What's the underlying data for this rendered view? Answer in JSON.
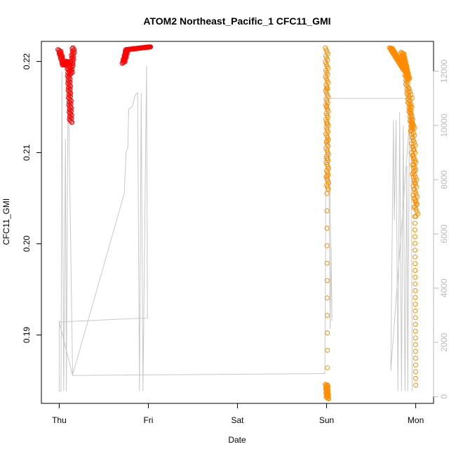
{
  "chart_data": {
    "type": "scatter",
    "title": "ATOM2 Northeast_Pacific_1 CFC11_GMI",
    "xlabel": "Date",
    "ylabel": "CFC11_GMI",
    "x_ticks": [
      "Thu",
      "Fri",
      "Sat",
      "Sun",
      "Mon"
    ],
    "x_range_days": [
      -0.2,
      4.2
    ],
    "ylim": [
      0.1825,
      0.2222
    ],
    "y_ticks": [
      0.19,
      0.2,
      0.21,
      0.22
    ],
    "y_tick_labels": [
      "0.19",
      "0.20",
      "0.21",
      "0.22"
    ],
    "y2_lim": [
      -250,
      13100
    ],
    "y2_ticks": [
      0,
      2000,
      4000,
      6000,
      8000,
      10000,
      12000
    ],
    "y2_tick_labels": [
      "0",
      "2000",
      "4000",
      "6000",
      "8000",
      "10000",
      "12000"
    ],
    "colors": {
      "red": "#ff0000",
      "orange": "#ff8c00",
      "gray": "#c8c8c8",
      "axis": "#000000",
      "right_axis": "#bbbbbb"
    },
    "series": [
      {
        "color": "red",
        "segments": [
          {
            "x0": 0.0,
            "x1": 0.05,
            "y0": 0.2213,
            "y1": 0.2196,
            "n": 25,
            "dense": true
          },
          {
            "x0": 0.05,
            "x1": 0.1,
            "y0": 0.2196,
            "y1": 0.22,
            "n": 15,
            "dense": true
          },
          {
            "x0": 0.1,
            "x1": 0.13,
            "y0": 0.22,
            "y1": 0.2133,
            "n": 60,
            "dense": true
          },
          {
            "x0": 0.13,
            "x1": 0.16,
            "y0": 0.2185,
            "y1": 0.2215,
            "n": 30,
            "dense": true
          },
          {
            "x0": 0.72,
            "x1": 0.76,
            "y0": 0.2198,
            "y1": 0.2213,
            "n": 25,
            "dense": true
          },
          {
            "x0": 0.76,
            "x1": 1.02,
            "y0": 0.2213,
            "y1": 0.2216,
            "n": 80,
            "dense": true
          }
        ]
      },
      {
        "color": "orange",
        "segments": [
          {
            "x0": 3.0,
            "x1": 3.01,
            "y0": 0.2215,
            "y1": 0.206,
            "n": 70,
            "dense": true
          },
          {
            "x0": 3.0,
            "x1": 3.01,
            "y0": 0.217,
            "y1": 0.1845,
            "n": 18,
            "dense": false
          },
          {
            "x0": 3.0,
            "x1": 3.01,
            "y0": 0.1846,
            "y1": 0.183,
            "n": 25,
            "dense": true
          },
          {
            "x0": 3.72,
            "x1": 3.88,
            "y0": 0.2215,
            "y1": 0.219,
            "n": 90,
            "dense": true
          },
          {
            "x0": 3.85,
            "x1": 3.92,
            "y0": 0.221,
            "y1": 0.218,
            "n": 50,
            "dense": true
          },
          {
            "x0": 3.88,
            "x1": 3.96,
            "y0": 0.2195,
            "y1": 0.2125,
            "n": 50,
            "dense": true
          },
          {
            "x0": 3.94,
            "x1": 3.99,
            "y0": 0.217,
            "y1": 0.204,
            "n": 40,
            "dense": true
          },
          {
            "x0": 3.97,
            "x1": 4.01,
            "y0": 0.2135,
            "y1": 0.203,
            "n": 40,
            "dense": true
          },
          {
            "x0": 3.99,
            "x1": 4.0,
            "y0": 0.203,
            "y1": 0.1845,
            "n": 26,
            "dense": false
          }
        ]
      }
    ],
    "secondary_line": {
      "color": "gray",
      "points": [
        [
          0.0,
          2800
        ],
        [
          0.0,
          200
        ],
        [
          0.02,
          200
        ],
        [
          0.03,
          12000
        ],
        [
          0.05,
          200
        ],
        [
          0.07,
          9500
        ],
        [
          0.08,
          200
        ],
        [
          0.1,
          12000
        ],
        [
          0.15,
          800
        ],
        [
          0.73,
          7500
        ],
        [
          0.75,
          9000
        ],
        [
          0.77,
          9200
        ],
        [
          0.78,
          10600
        ],
        [
          0.82,
          10700
        ],
        [
          0.85,
          11100
        ],
        [
          0.88,
          11200
        ],
        [
          0.9,
          200
        ],
        [
          0.92,
          11200
        ],
        [
          0.94,
          200
        ],
        [
          0.98,
          12200
        ],
        [
          0.99,
          3000
        ],
        [
          0.99,
          2900
        ],
        [
          0.0,
          2750
        ],
        [
          0.15,
          780
        ],
        [
          2.98,
          850
        ],
        [
          3.0,
          12600
        ],
        [
          3.02,
          11000
        ],
        [
          3.04,
          2500
        ],
        [
          3.05,
          5500
        ],
        [
          3.06,
          2800
        ],
        [
          3.02,
          11000
        ],
        [
          3.95,
          11000
        ],
        [
          3.72,
          950
        ],
        [
          3.75,
          10200
        ],
        [
          3.76,
          6500
        ],
        [
          3.78,
          10200
        ],
        [
          3.8,
          200
        ],
        [
          3.82,
          10500
        ],
        [
          3.84,
          200
        ],
        [
          3.86,
          10000
        ],
        [
          3.88,
          200
        ],
        [
          3.9,
          8500
        ],
        [
          3.91,
          200
        ],
        [
          3.93,
          10800
        ],
        [
          3.95,
          11000
        ],
        [
          3.96,
          200
        ]
      ]
    }
  }
}
